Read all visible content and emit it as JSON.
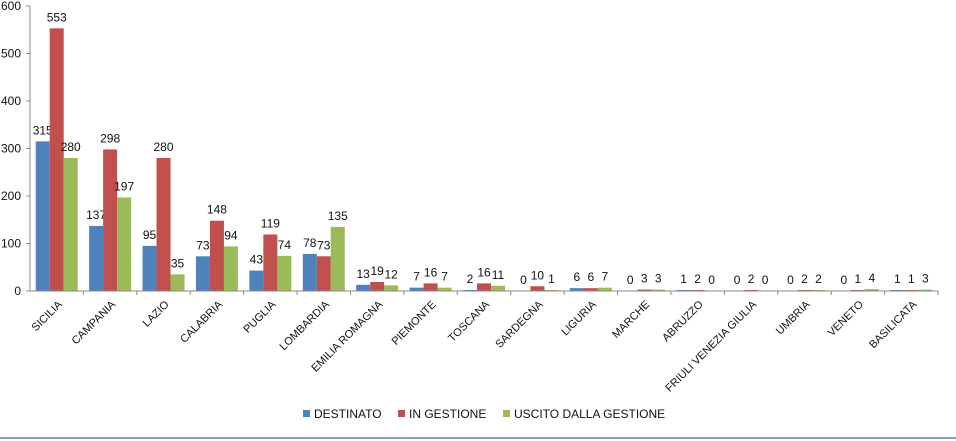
{
  "chart_data": {
    "type": "bar",
    "title": "",
    "xlabel": "",
    "ylabel": "",
    "ylim": [
      0,
      600
    ],
    "yticks": [
      0,
      100,
      200,
      300,
      400,
      500,
      600
    ],
    "grid": false,
    "legend_position": "bottom",
    "categories": [
      "SICILIA",
      "CAMPANIA",
      "LAZIO",
      "CALABRIA",
      "PUGLIA",
      "LOMBARDIA",
      "EMILIA ROMAGNA",
      "PIEMONTE",
      "TOSCANA",
      "SARDEGNA",
      "LIGURIA",
      "MARCHE",
      "ABRUZZO",
      "FRIULI VENEZIA GIULIA",
      "UMBRIA",
      "VENETO",
      "BASILICATA"
    ],
    "series": [
      {
        "name": "DESTINATO",
        "color": "#4f81bd",
        "values": [
          315,
          137,
          95,
          73,
          43,
          78,
          13,
          7,
          2,
          0,
          6,
          0,
          1,
          0,
          0,
          0,
          1
        ]
      },
      {
        "name": "IN GESTIONE",
        "color": "#c0504d",
        "values": [
          553,
          298,
          280,
          148,
          119,
          73,
          19,
          16,
          16,
          10,
          6,
          3,
          2,
          2,
          2,
          1,
          1
        ]
      },
      {
        "name": "USCITO DALLA GESTIONE",
        "color": "#9bbb59",
        "values": [
          280,
          197,
          35,
          94,
          74,
          135,
          12,
          7,
          11,
          1,
          7,
          3,
          0,
          0,
          2,
          4,
          3
        ]
      }
    ]
  }
}
